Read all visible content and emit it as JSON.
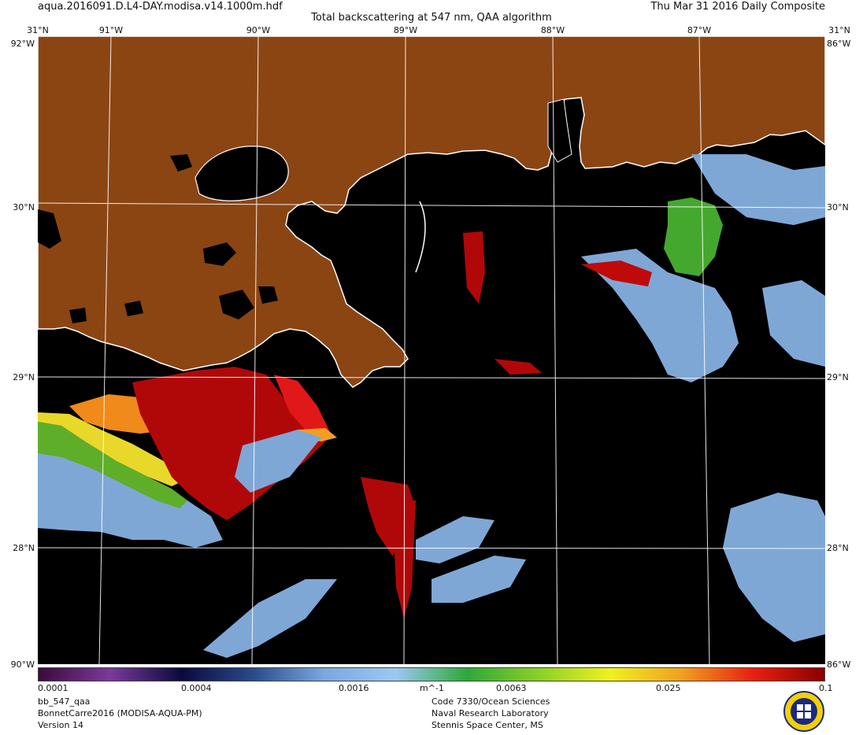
{
  "header": {
    "file_name": "aqua.2016091.D.L4-DAY.modisa.v14.1000m.hdf",
    "product_title": "Total backscattering at 547 nm, QAA algorithm",
    "date_label": "Thu Mar 31 2016 Daily Composite"
  },
  "map": {
    "lon_labels": [
      "91°W",
      "90°W",
      "89°W",
      "88°W",
      "87°W"
    ],
    "lat_labels": [
      "31°N",
      "30°N",
      "29°N",
      "28°N"
    ],
    "corner_labels": {
      "top_left_lat": "31°N",
      "top_left_lon": "92°W",
      "top_right_lat": "31°N",
      "top_right_lon": "86°W",
      "bottom_left": "90°W",
      "bottom_right": "86°W"
    },
    "colors": {
      "land": "#8b4513",
      "water_no_data": "#000000",
      "coastline": "#ffffff",
      "graticule": "#ffffff"
    }
  },
  "colorbar": {
    "tick_labels": [
      "0.0001",
      "0.0004",
      "0.0016",
      "m^-1",
      "0.0063",
      "0.025",
      "0.1"
    ],
    "colors": [
      "#3c0a3c",
      "#7a3a9a",
      "#0a0a3c",
      "#2a4a8a",
      "#7aa8e0",
      "#9cc8f0",
      "#2ea83a",
      "#8ad028",
      "#f0f020",
      "#f0a020",
      "#e82010",
      "#8a0000"
    ]
  },
  "footer": {
    "left": [
      "bb_547_qaa",
      "BonnetCarre2016 (MODISA-AQUA-PM)",
      "Version 14"
    ],
    "center": [
      "Code 7330/Ocean Sciences",
      "Naval Research Laboratory",
      "Stennis Space Center, MS"
    ]
  },
  "logo": {
    "icon": "nrl-seal-icon"
  }
}
